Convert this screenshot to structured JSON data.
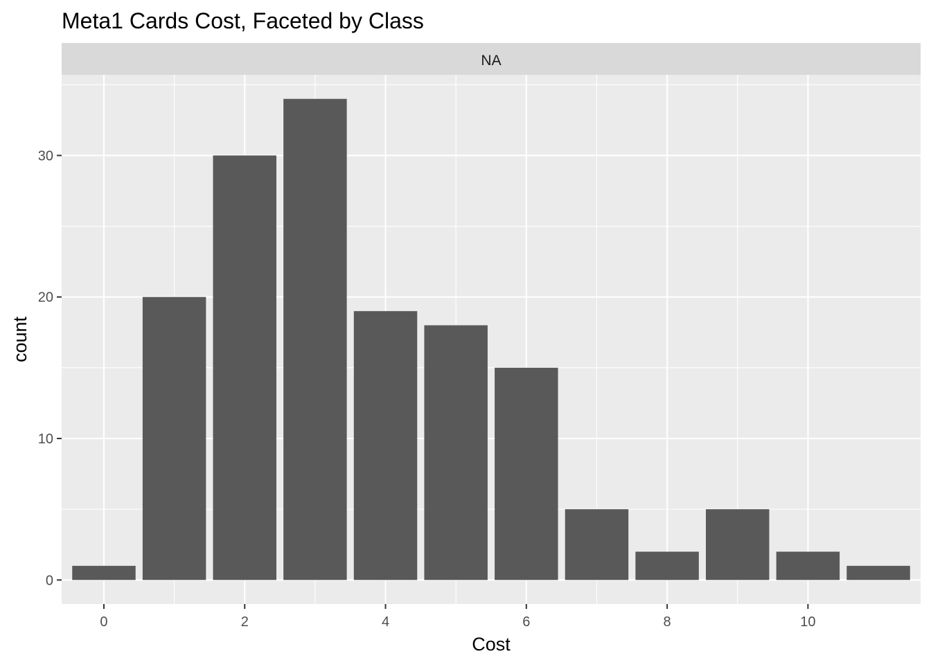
{
  "chart_data": {
    "type": "bar",
    "title": "Meta1 Cards Cost, Faceted by Class",
    "facet_label": "NA",
    "xlabel": "Cost",
    "ylabel": "count",
    "x": [
      0,
      1,
      2,
      3,
      4,
      5,
      6,
      7,
      8,
      9,
      10,
      11
    ],
    "values": [
      1,
      20,
      30,
      34,
      19,
      18,
      15,
      5,
      2,
      5,
      2,
      1
    ],
    "xlim": [
      -0.6,
      11.6
    ],
    "ylim": [
      -1.7,
      35.7
    ],
    "x_ticks": [
      0,
      2,
      4,
      6,
      8,
      10
    ],
    "x_tick_labels": [
      "0",
      "2",
      "4",
      "6",
      "8",
      "10"
    ],
    "y_ticks": [
      0,
      10,
      20,
      30
    ],
    "y_tick_labels": [
      "0",
      "10",
      "20",
      "30"
    ],
    "grid": true,
    "legend": "none",
    "colors": {
      "bar": "#595959",
      "panel": "#ebebeb",
      "strip": "#d9d9d9",
      "grid": "#ffffff"
    }
  }
}
